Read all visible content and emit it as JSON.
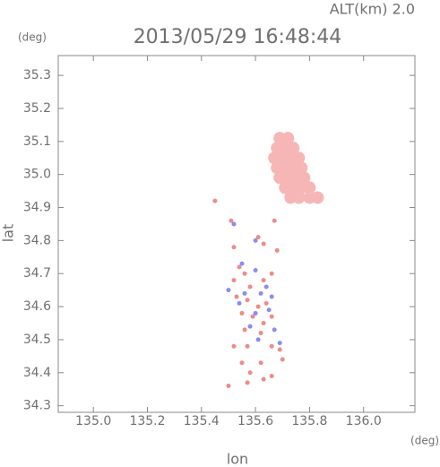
{
  "chart_data": {
    "type": "scatter",
    "title": "2013/05/29 16:48:44",
    "subtitle": "ALT(km) 2.0",
    "x_label": "lon",
    "y_label": "lat",
    "x_unit": "(deg)",
    "y_unit": "(deg)",
    "xlim": [
      134.87,
      136.19
    ],
    "ylim": [
      34.28,
      35.36
    ],
    "xticks": [
      {
        "value": 135.0,
        "label": "135.0"
      },
      135.2,
      135.4,
      135.6,
      135.8,
      {
        "value": 136.0,
        "label": "136.0"
      }
    ],
    "yticks": [
      34.3,
      34.4,
      34.5,
      34.6,
      34.7,
      34.8,
      34.9,
      {
        "value": 35.0,
        "label": "35.0"
      },
      35.1,
      35.2,
      35.3
    ],
    "series": [
      {
        "color": "#f7b6b6",
        "marker_size": 7,
        "x": [
          135.69,
          135.72,
          135.68,
          135.71,
          135.74,
          135.67,
          135.7,
          135.73,
          135.76,
          135.68,
          135.71,
          135.74,
          135.77,
          135.69,
          135.72,
          135.75,
          135.78,
          135.71,
          135.74,
          135.77,
          135.8,
          135.73,
          135.76,
          135.8,
          135.83
        ],
        "y": [
          35.11,
          35.11,
          35.08,
          35.08,
          35.08,
          35.05,
          35.05,
          35.05,
          35.05,
          35.02,
          35.02,
          35.02,
          35.02,
          34.99,
          34.99,
          34.99,
          34.99,
          34.96,
          34.96,
          34.96,
          34.96,
          34.93,
          34.93,
          34.93,
          34.93
        ]
      },
      {
        "color": "#ef8a8a",
        "marker_size": 2.5,
        "x": [
          135.45,
          135.51,
          135.52,
          135.67,
          135.61,
          135.63,
          135.68,
          135.54,
          135.56,
          135.52,
          135.58,
          135.63,
          135.66,
          135.53,
          135.57,
          135.61,
          135.64,
          135.55,
          135.59,
          135.63,
          135.66,
          135.56,
          135.62,
          135.57,
          135.66,
          135.69,
          135.52,
          135.7,
          135.62,
          135.55,
          135.58,
          135.63,
          135.66,
          135.57,
          135.5
        ],
        "y": [
          34.92,
          34.86,
          34.78,
          34.86,
          34.81,
          34.79,
          34.77,
          34.72,
          34.7,
          34.68,
          34.66,
          34.68,
          34.7,
          34.63,
          34.62,
          34.6,
          34.61,
          34.58,
          34.57,
          34.55,
          34.57,
          34.53,
          34.52,
          34.48,
          34.48,
          34.47,
          34.48,
          34.44,
          34.43,
          34.43,
          34.4,
          34.38,
          34.39,
          34.37,
          34.36
        ]
      },
      {
        "color": "#8c8cf0",
        "marker_size": 2.5,
        "x": [
          135.52,
          135.6,
          135.55,
          135.6,
          135.64,
          135.5,
          135.56,
          135.62,
          135.6,
          135.65,
          135.58,
          135.67,
          135.61,
          135.69,
          135.54,
          135.66
        ],
        "y": [
          34.85,
          34.8,
          34.73,
          34.71,
          34.66,
          34.65,
          34.64,
          34.64,
          34.58,
          34.59,
          34.54,
          34.53,
          34.5,
          34.49,
          34.61,
          34.63
        ]
      }
    ]
  }
}
